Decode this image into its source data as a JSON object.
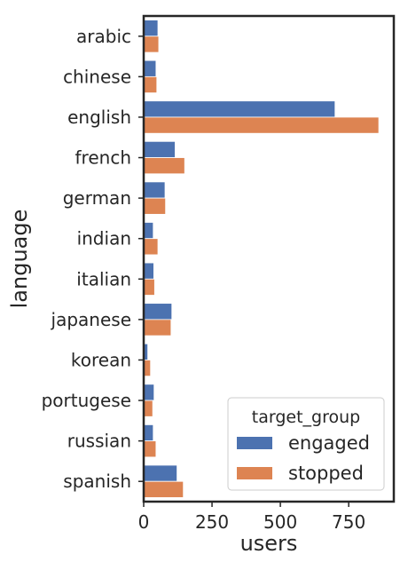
{
  "chart_data": {
    "type": "bar",
    "orientation": "horizontal",
    "categories": [
      "arabic",
      "chinese",
      "english",
      "french",
      "german",
      "indian",
      "italian",
      "japanese",
      "korean",
      "portugese",
      "russian",
      "spanish"
    ],
    "series": [
      {
        "name": "engaged",
        "color": "#4c72b0",
        "values": [
          52,
          45,
          700,
          115,
          78,
          35,
          37,
          103,
          15,
          38,
          35,
          122
        ]
      },
      {
        "name": "stopped",
        "color": "#dd8452",
        "values": [
          55,
          48,
          860,
          150,
          80,
          52,
          40,
          100,
          25,
          33,
          45,
          145
        ]
      }
    ],
    "xlabel": "users",
    "ylabel": "language",
    "xlim": [
      0,
      915
    ],
    "xticks": [
      0,
      250,
      500,
      750
    ],
    "xtick_labels": [
      "0",
      "250",
      "500",
      "750"
    ],
    "grid": false,
    "legend": {
      "title": "target_group",
      "placement": "lower-right"
    }
  }
}
